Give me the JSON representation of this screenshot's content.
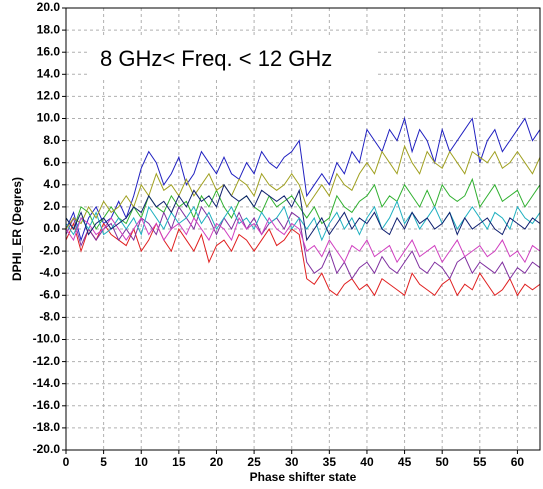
{
  "chart_data": {
    "type": "line",
    "annotation": "8 GHz< Freq. < 12 GHz",
    "x_label": "Phase shifter state",
    "y_label": "DPHI_ER (Degres)",
    "xlim": [
      0,
      63
    ],
    "ylim": [
      -20,
      20
    ],
    "xticks": [
      0,
      5,
      10,
      15,
      20,
      25,
      30,
      35,
      40,
      45,
      50,
      55,
      60
    ],
    "yticks": [
      {
        "value": -20,
        "label": "-20.0"
      },
      {
        "value": -18,
        "label": "-18.0"
      },
      {
        "value": -16,
        "label": "-16.0"
      },
      {
        "value": -14,
        "label": "-14.0"
      },
      {
        "value": -12,
        "label": "-12.0"
      },
      {
        "value": -10,
        "label": "-10.0"
      },
      {
        "value": -8,
        "label": "-8.0"
      },
      {
        "value": -6,
        "label": "-6.0"
      },
      {
        "value": -4,
        "label": "-4.0"
      },
      {
        "value": -2,
        "label": "-2.0"
      },
      {
        "value": 0,
        "label": "0.0"
      },
      {
        "value": 2,
        "label": "2.0"
      },
      {
        "value": 4,
        "label": "4.0"
      },
      {
        "value": 6,
        "label": "6.0"
      },
      {
        "value": 8,
        "label": "8.0"
      },
      {
        "value": 10,
        "label": "10.0"
      },
      {
        "value": 12,
        "label": "12.0"
      },
      {
        "value": 14,
        "label": "14.0"
      },
      {
        "value": 16,
        "label": "16.0"
      },
      {
        "value": 18,
        "label": "18.0"
      },
      {
        "value": 20,
        "label": "20.0"
      }
    ],
    "grid": true,
    "x": [
      0,
      1,
      2,
      3,
      4,
      5,
      6,
      7,
      8,
      9,
      10,
      11,
      12,
      13,
      14,
      15,
      16,
      17,
      18,
      19,
      20,
      21,
      22,
      23,
      24,
      25,
      26,
      27,
      28,
      29,
      30,
      31,
      32,
      33,
      34,
      35,
      36,
      37,
      38,
      39,
      40,
      41,
      42,
      43,
      44,
      45,
      46,
      47,
      48,
      49,
      50,
      51,
      52,
      53,
      54,
      55,
      56,
      57,
      58,
      59,
      60,
      61,
      62,
      63
    ],
    "series": [
      {
        "color": "#2020c0",
        "values": [
          0,
          1.5,
          -1,
          1,
          2,
          0.5,
          1,
          2.5,
          1,
          3,
          5.5,
          7,
          6,
          4,
          5,
          6.5,
          4,
          5,
          7,
          6,
          5,
          6.5,
          5,
          4.5,
          6,
          5,
          7,
          6,
          5.5,
          6.5,
          7,
          8,
          3,
          4,
          5,
          4,
          6,
          5,
          7,
          6,
          9,
          8,
          7,
          9,
          8,
          10,
          7,
          9,
          8,
          6,
          9,
          7,
          8,
          9,
          10,
          6,
          8,
          9,
          7,
          8,
          9,
          10,
          8,
          9
        ]
      },
      {
        "color": "#e02020",
        "values": [
          -1,
          0.5,
          -2,
          0,
          -1,
          0.5,
          -0.5,
          -1,
          -1.5,
          0,
          -2,
          -1,
          0.5,
          -1,
          -2,
          0,
          -1,
          -2,
          -0.5,
          -3,
          -1.5,
          -1,
          -2,
          -0.5,
          -1,
          -2,
          -1,
          0,
          -1.5,
          -1,
          0,
          -0.5,
          -4.5,
          -5,
          -4,
          -5.5,
          -6,
          -5,
          -4.5,
          -5.5,
          -5,
          -6,
          -4.5,
          -5,
          -5.5,
          -6,
          -4,
          -5,
          -5.5,
          -6,
          -5,
          -4.5,
          -6,
          -5,
          -5.5,
          -4,
          -5,
          -6,
          -5.5,
          -4.5,
          -6,
          -5,
          -5.5,
          -5
        ]
      },
      {
        "color": "#30b030",
        "values": [
          1,
          0,
          2,
          1.5,
          0,
          1,
          2,
          1,
          0.5,
          2,
          1,
          3,
          2,
          1.5,
          3,
          2,
          2.5,
          1,
          3,
          2,
          3.5,
          2,
          1,
          2.5,
          3,
          2,
          1.5,
          3,
          2,
          2.5,
          3,
          2,
          1,
          2,
          0.5,
          1,
          3,
          2,
          1.5,
          2.5,
          3,
          4,
          2,
          3,
          2.5,
          4,
          3,
          2,
          3.5,
          2,
          4,
          3,
          2.5,
          3,
          4.5,
          2,
          3,
          4,
          2.5,
          3,
          3.5,
          2,
          3,
          4
        ]
      },
      {
        "color": "#8030a0",
        "values": [
          -0.5,
          1,
          -1.5,
          0,
          -1,
          0,
          0.5,
          -1,
          0,
          -1,
          1,
          0.5,
          -0.5,
          1.5,
          0,
          2,
          1,
          0,
          2,
          1,
          -0.5,
          1,
          0,
          1.5,
          0,
          1,
          -0.5,
          0.5,
          1,
          0,
          1.5,
          1,
          -3,
          -4,
          -3.5,
          -2,
          -4,
          -3,
          -4.5,
          -3.5,
          -3,
          -4,
          -2.5,
          -3.5,
          -4,
          -3,
          -2,
          -3.5,
          -4,
          -3,
          -3.5,
          -4.5,
          -3,
          -2.5,
          -4,
          -3,
          -3.5,
          -4,
          -3,
          -4.5,
          -3.5,
          -4,
          -3,
          -3.5
        ]
      },
      {
        "color": "#20b0c0",
        "values": [
          0.5,
          -0.5,
          1,
          0,
          1.5,
          -0.5,
          0,
          1,
          0,
          1,
          -0.5,
          2,
          1,
          0,
          1.5,
          0.5,
          1,
          2,
          0.5,
          1.5,
          0,
          1,
          2,
          0.5,
          1,
          0,
          1.5,
          0.5,
          1,
          2,
          0,
          1,
          0,
          1,
          -1,
          0.5,
          1.5,
          0,
          1,
          -0.5,
          1,
          2,
          0,
          1,
          2.5,
          0.5,
          1.5,
          0,
          1,
          2,
          0.5,
          1.5,
          0,
          1,
          2,
          1,
          0,
          1.5,
          1,
          0,
          2,
          1,
          0.5,
          1.5
        ]
      },
      {
        "color": "#a0a020",
        "values": [
          0,
          1,
          0.5,
          2,
          1,
          2.5,
          1.5,
          2,
          3,
          2,
          4,
          3,
          5,
          3.5,
          4,
          3,
          4.5,
          3,
          4,
          5,
          3.5,
          4,
          3,
          4.5,
          4,
          3,
          5,
          4,
          3.5,
          4,
          5,
          4,
          2,
          3,
          4,
          3,
          5,
          4,
          3.5,
          5,
          6,
          5,
          7,
          6,
          5,
          7.5,
          6,
          5,
          7,
          6,
          5.5,
          7,
          6,
          5,
          7,
          6.5,
          6,
          7,
          5.5,
          6,
          7,
          6,
          5,
          6.5
        ]
      },
      {
        "color": "#d040c0",
        "values": [
          0,
          -1,
          1,
          0.5,
          -0.5,
          0,
          1,
          0,
          -1,
          0,
          1,
          -0.5,
          0.5,
          -1,
          0,
          0.5,
          -0.5,
          1,
          0,
          -1,
          0.5,
          0,
          -1,
          1,
          0,
          0.5,
          -0.5,
          1,
          0,
          -0.5,
          0.5,
          0,
          -2,
          -1.5,
          -2.5,
          -1,
          -2,
          -3,
          -1.5,
          -2,
          -1,
          -2.5,
          -2,
          -1.5,
          -3,
          -2,
          -1,
          -2.5,
          -2,
          -1.5,
          -3,
          -2,
          -1,
          -2.5,
          -2,
          -1.5,
          -2.5,
          -2,
          -1,
          -2.5,
          -2,
          -3,
          -1.5,
          -2
        ]
      },
      {
        "color": "#102070",
        "values": [
          1,
          0,
          1.5,
          -0.5,
          0.5,
          1,
          0,
          0.5,
          1,
          2,
          1.5,
          3,
          2,
          2.5,
          1.5,
          3,
          2,
          3.5,
          2.5,
          3,
          2,
          4,
          3,
          2.5,
          3,
          2,
          3.5,
          3,
          2.5,
          3,
          2,
          3.5,
          -1,
          0,
          1,
          -0.5,
          0.5,
          1.5,
          0,
          1,
          0.5,
          1.5,
          0,
          -0.5,
          1,
          0,
          1.5,
          0.5,
          1,
          0,
          0.5,
          1.5,
          -0.5,
          1,
          0,
          0.5,
          1,
          0,
          -0.5,
          1,
          0.5,
          0,
          1,
          0.5
        ]
      }
    ]
  }
}
